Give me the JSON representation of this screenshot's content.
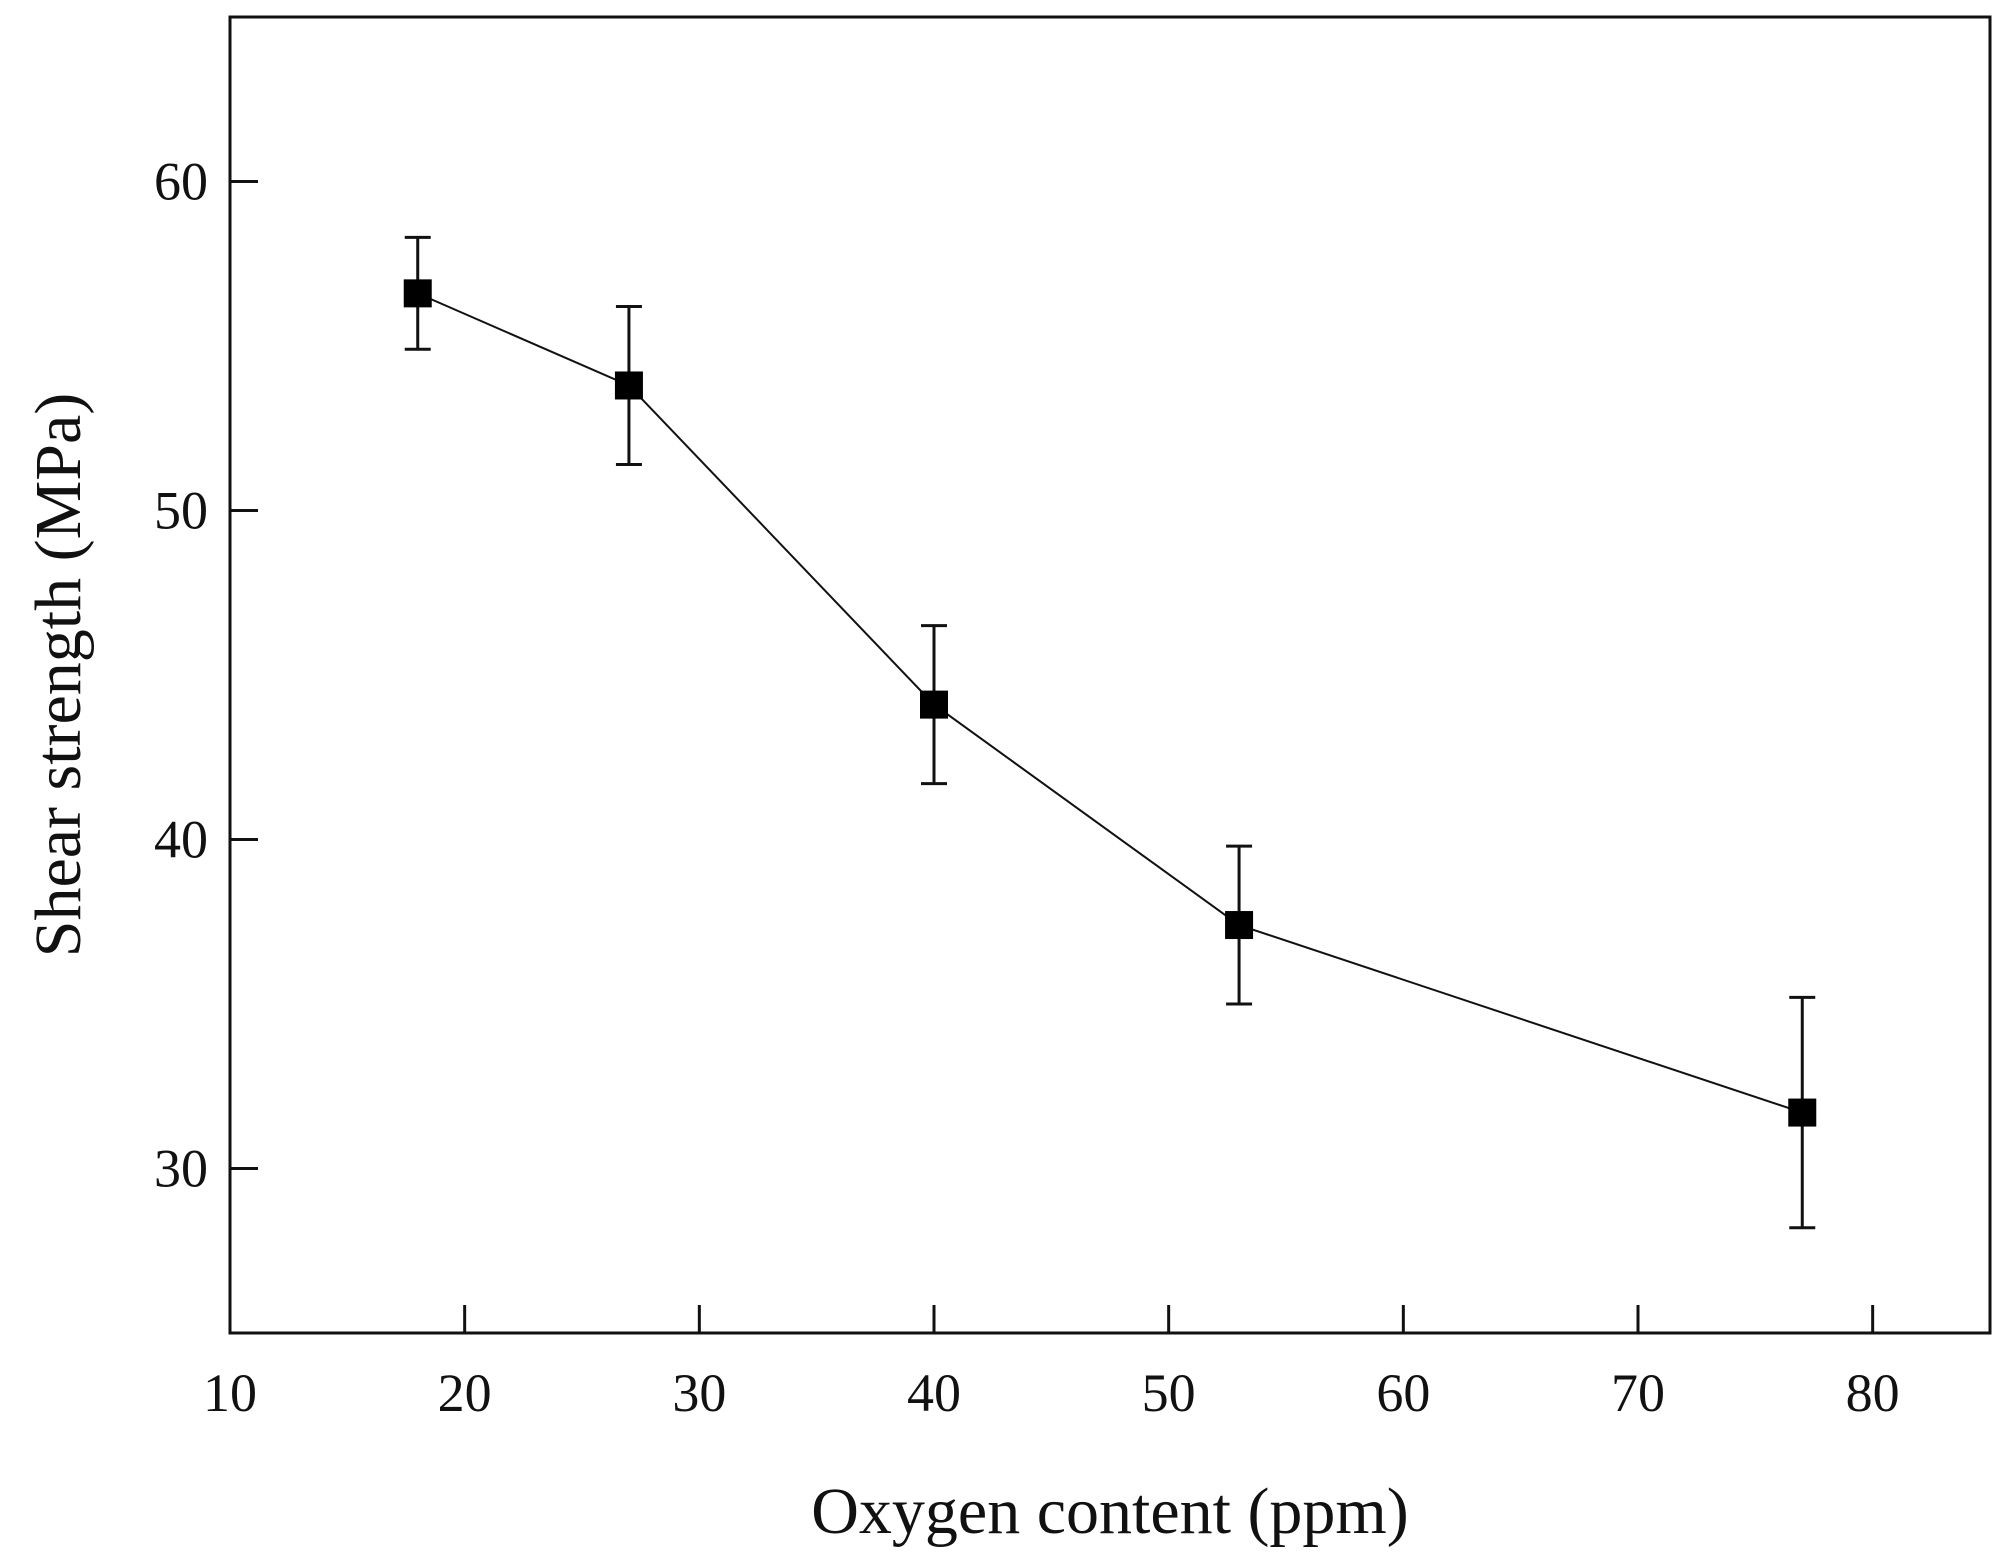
{
  "chart_data": {
    "type": "line",
    "title": "",
    "xlabel": "Oxygen content (ppm)",
    "ylabel": "Shear strength (MPa)",
    "xlim": [
      10,
      85
    ],
    "ylim": [
      25,
      65
    ],
    "xticks": [
      10,
      20,
      30,
      40,
      50,
      60,
      70,
      80
    ],
    "yticks": [
      30,
      40,
      50,
      60
    ],
    "xtick_labels": [
      "10",
      "20",
      "30",
      "40",
      "50",
      "60",
      "70",
      "80"
    ],
    "ytick_labels": [
      "30",
      "40",
      "50",
      "60"
    ],
    "grid": false,
    "legend": "none",
    "series": [
      {
        "name": "Shear strength",
        "marker": "filled-square",
        "color": "#000000",
        "x": [
          18,
          27,
          40,
          53,
          77
        ],
        "y": [
          56.6,
          53.8,
          44.1,
          37.4,
          31.7
        ],
        "error": [
          1.7,
          2.4,
          2.4,
          2.4,
          3.5
        ]
      }
    ]
  }
}
